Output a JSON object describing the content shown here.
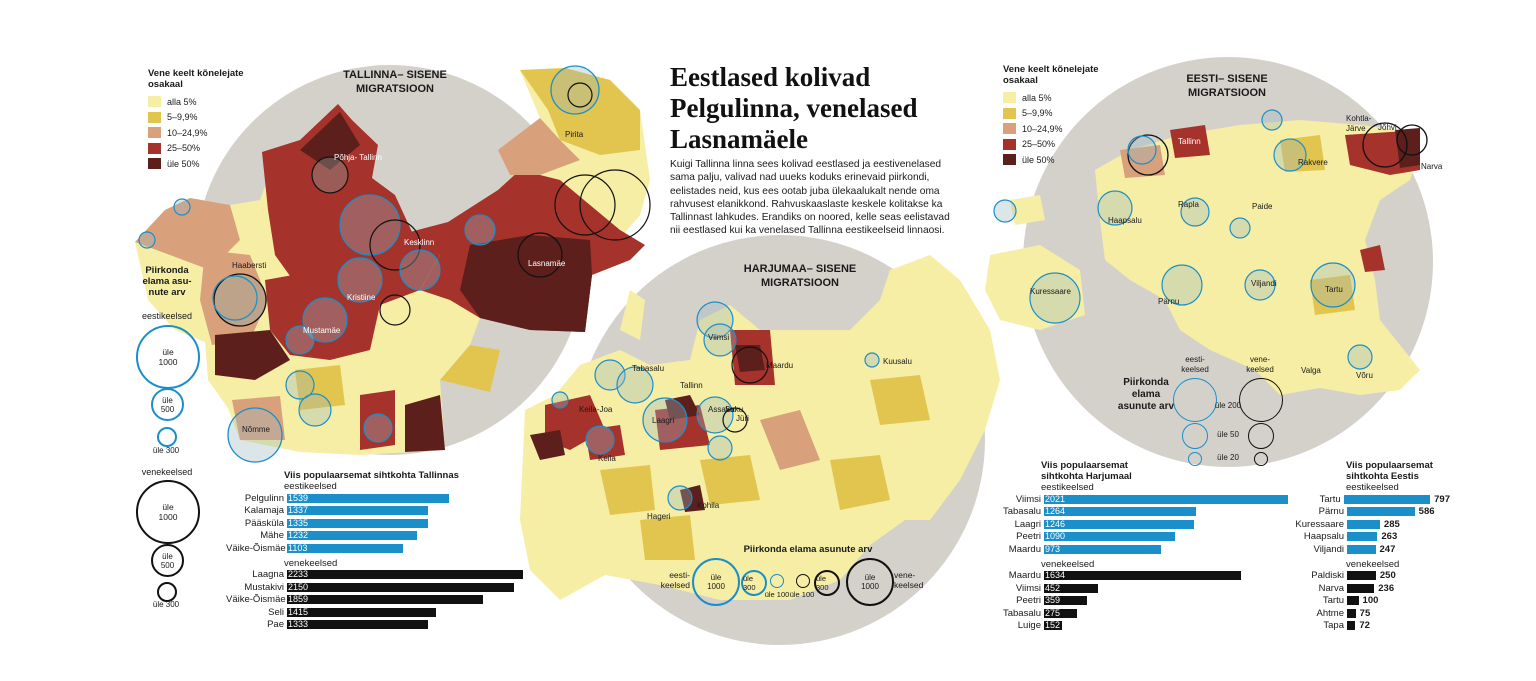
{
  "headline": "Eestlased kolivad Pelgulinna, venelased Lasnamäele",
  "intro": "Kuigi Tallinna linna sees kolivad eestlased ja eestivenelased sama palju, valivad nad uueks koduks erinevaid piirkondi, eelistades neid, kus ees ootab juba ülekaalukalt nende oma rahvusest elanikkond. Rahvuskaaslaste keskele kolitakse ka Tallinnast lahkudes. Erandiks on noored, kelle seas eelistavad nii eestlased kui ka venelased Tallinna eestikeelseid linnaosi.",
  "colors": {
    "alla5": "#f6eea4",
    "p5_9": "#e2c54e",
    "p10_24": "#d9a07c",
    "p25_50": "#a5322b",
    "ule50": "#5c1f1c",
    "estonian": "#1a8fc9",
    "russian": "#111111",
    "gray": "#d4d1cb"
  },
  "legend_left": {
    "title": "Vene keelt kõnelejate osakaal",
    "items": [
      "alla 5%",
      "5–9,9%",
      "10–24,9%",
      "25–50%",
      "üle 50%"
    ]
  },
  "legend_right": {
    "title": "Vene keelt kõnelejate osakaal",
    "items": [
      "alla 5%",
      "5–9,9%",
      "10–24,9%",
      "25–50%",
      "üle 50%"
    ]
  },
  "maps": {
    "tallinn": {
      "title": "TALLINNA– SISENE MIGRATSIOON",
      "places": [
        "Põhja- Tallinn",
        "Pirita",
        "Kesklinn",
        "Lasnamäe",
        "Haabersti",
        "Kristiine",
        "Mustamäe",
        "Nõmme"
      ]
    },
    "harju": {
      "title": "HARJUMAA– SISENE MIGRATSIOON",
      "places": [
        "Viimsi",
        "Maardu",
        "Kuusalu",
        "Tabasalu",
        "Tallinn",
        "Keila-Joa",
        "Laagri",
        "Saku",
        "Assaku",
        "Jüri",
        "Keila",
        "Kohila",
        "Hageri"
      ]
    },
    "estonia": {
      "title": "EESTI– SISENE MIGRATSIOON",
      "places": [
        "Tallinn",
        "Kohtla- Järve",
        "Jõhvi",
        "Narva",
        "Rakvere",
        "Rapla",
        "Paide",
        "Haapsalu",
        "Kuressaare",
        "Pärnu",
        "Viljandi",
        "Tartu",
        "Valga",
        "Võru"
      ]
    }
  },
  "size_legend_left": {
    "title": "Piirkonda elama asu- nute arv",
    "est_label": "eestikeelsed",
    "rus_label": "venekeelsed",
    "sizes": [
      "üle 1000",
      "üle 500",
      "üle 300"
    ]
  },
  "size_legend_harju": {
    "title": "Piirkonda elama asunute arv",
    "left_label": "eesti- keelsed",
    "right_label": "vene- keelsed",
    "labels": [
      "üle 1000",
      "üle 300",
      "üle 100",
      "üle 100",
      "üle 300",
      "üle 1000"
    ]
  },
  "size_legend_estonia": {
    "title": "Piirkonda elama asunute arv",
    "est_label": "eesti- keelsed",
    "rus_label": "vene- keelsed",
    "labels": [
      "üle 200",
      "üle 50",
      "üle 20"
    ]
  },
  "chart_data": [
    {
      "type": "bar",
      "title": "Viis populaarsemat sihtkohta Tallinnas",
      "series": [
        {
          "name": "eestikeelsed",
          "categories": [
            "Pelgulinn",
            "Kalamaja",
            "Pääsküla",
            "Mähe",
            "Väike-Õismäe"
          ],
          "values": [
            1539,
            1337,
            1335,
            1232,
            1103
          ]
        },
        {
          "name": "venekeelsed",
          "categories": [
            "Laagna",
            "Mustakivi",
            "Väike-Õismäe",
            "Seli",
            "Pae"
          ],
          "values": [
            2233,
            2150,
            1859,
            1415,
            1333
          ]
        }
      ]
    },
    {
      "type": "bar",
      "title": "Viis populaarsemat sihtkohta Harjumaal",
      "series": [
        {
          "name": "eestikeelsed",
          "categories": [
            "Viimsi",
            "Tabasalu",
            "Laagri",
            "Peetri",
            "Maardu"
          ],
          "values": [
            2021,
            1264,
            1246,
            1090,
            973
          ]
        },
        {
          "name": "venekeelsed",
          "categories": [
            "Maardu",
            "Viimsi",
            "Peetri",
            "Tabasalu",
            "Luige"
          ],
          "values": [
            1634,
            452,
            359,
            275,
            152
          ]
        }
      ]
    },
    {
      "type": "bar",
      "title": "Viis populaarsemat sihtkohta Eestis",
      "series": [
        {
          "name": "eestikeelsed",
          "categories": [
            "Tartu",
            "Pärnu",
            "Kuressaare",
            "Haapsalu",
            "Viljandi"
          ],
          "values": [
            797,
            586,
            285,
            263,
            247
          ]
        },
        {
          "name": "venekeelsed",
          "categories": [
            "Paldiski",
            "Narva",
            "Tartu",
            "Ahtme",
            "Tapa"
          ],
          "values": [
            250,
            236,
            100,
            75,
            72
          ]
        }
      ]
    }
  ]
}
